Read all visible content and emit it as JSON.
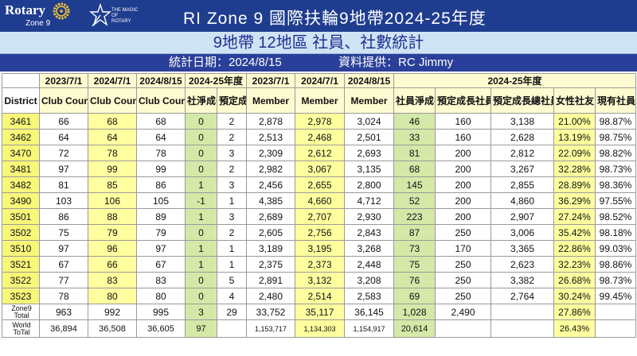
{
  "header": {
    "logo_rotary": "Rotary",
    "logo_zone": "Zone 9",
    "magic_text": "THE MAGIC OF ROTARY",
    "title": "RI Zone 9    國際扶輪9地帶2024-25年度"
  },
  "subtitle": "9地帶 12地區 社員、社數統計",
  "stat": {
    "date": "統計日期：2024/8/15",
    "source": "資料提供：RC Jimmy"
  },
  "colors": {
    "header_bg": "#1f3d8f",
    "subtitle_bg": "#cfe3f5",
    "highlight_yellow": "#ffff9f",
    "district_yellow": "#f9f77a",
    "growth_green": "#d4e9a8",
    "red_text": "#e3001a",
    "navy_text": "#1a237e"
  },
  "table": {
    "group_headers": {
      "c1": "2023/7/1",
      "c2": "2024/7/1",
      "c3": "2024/8/15",
      "c4": "2024-25年度",
      "m1": "2023/7/1",
      "m2": "2024/7/1",
      "m3": "2024/8/15",
      "m4": "2024-25年度"
    },
    "sub_headers": {
      "district": "District",
      "club1": "Club Count",
      "club2": "Club Count",
      "club3": "Club Count",
      "net_club": "社淨成長",
      "plan_club": "預定成長社數",
      "mem1": "Member",
      "mem2": "Member",
      "mem3": "Member",
      "net_mem": "社員淨成長",
      "plan_mem": "預定成長社員數",
      "plan_total": "預定成長總社員數",
      "female": "女性社友比率",
      "retention": "現有社員續留率"
    },
    "rows": [
      {
        "district": "3461",
        "c1": "66",
        "c2": "68",
        "c3": "68",
        "net": "0",
        "plan": "2",
        "m1": "2,878",
        "m2": "2,978",
        "m3": "3,024",
        "mnet": "46",
        "mplan": "160",
        "mtotal": "3,138",
        "female": "21.00%",
        "ret": "98.87%"
      },
      {
        "district": "3462",
        "c1": "64",
        "c2": "64",
        "c3": "64",
        "net": "0",
        "plan": "2",
        "m1": "2,513",
        "m2": "2,468",
        "m3": "2,501",
        "mnet": "33",
        "mplan": "160",
        "mtotal": "2,628",
        "female": "13.19%",
        "ret": "98.75%"
      },
      {
        "district": "3470",
        "c1": "72",
        "c2": "78",
        "c3": "78",
        "net": "0",
        "plan": "3",
        "m1": "2,309",
        "m2": "2,612",
        "m3": "2,693",
        "mnet": "81",
        "mplan": "200",
        "mtotal": "2,812",
        "female": "22.09%",
        "ret": "98.82%"
      },
      {
        "district": "3481",
        "c1": "97",
        "c2": "99",
        "c3": "99",
        "net": "0",
        "plan": "2",
        "m1": "2,982",
        "m2": "3,067",
        "m3": "3,135",
        "mnet": "68",
        "mplan": "200",
        "mtotal": "3,267",
        "female": "32.28%",
        "ret": "98.73%"
      },
      {
        "district": "3482",
        "c1": "81",
        "c2": "85",
        "c3": "86",
        "net": "1",
        "plan": "3",
        "m1": "2,456",
        "m2": "2,655",
        "m3": "2,800",
        "mnet": "145",
        "mplan": "200",
        "mtotal": "2,855",
        "female": "28.89%",
        "ret": "98.36%"
      },
      {
        "district": "3490",
        "c1": "103",
        "c2": "106",
        "c3": "105",
        "net": "-1",
        "plan": "1",
        "m1": "4,385",
        "m2": "4,660",
        "m3": "4,712",
        "mnet": "52",
        "mplan": "200",
        "mtotal": "4,860",
        "female": "36.29%",
        "ret": "97.55%"
      },
      {
        "district": "3501",
        "c1": "86",
        "c2": "88",
        "c3": "89",
        "net": "1",
        "plan": "3",
        "m1": "2,689",
        "m2": "2,707",
        "m3": "2,930",
        "mnet": "223",
        "mplan": "200",
        "mtotal": "2,907",
        "female": "27.24%",
        "ret": "98.52%"
      },
      {
        "district": "3502",
        "c1": "75",
        "c2": "79",
        "c3": "79",
        "net": "0",
        "plan": "2",
        "m1": "2,605",
        "m2": "2,756",
        "m3": "2,843",
        "mnet": "87",
        "mplan": "250",
        "mtotal": "3,006",
        "female": "35.42%",
        "ret": "98.18%"
      },
      {
        "district": "3510",
        "c1": "97",
        "c2": "96",
        "c3": "97",
        "net": "1",
        "plan": "1",
        "m1": "3,189",
        "m2": "3,195",
        "m3": "3,268",
        "mnet": "73",
        "mplan": "170",
        "mtotal": "3,365",
        "female": "22.86%",
        "ret": "99.03%"
      },
      {
        "district": "3521",
        "c1": "67",
        "c2": "66",
        "c3": "67",
        "net": "1",
        "plan": "1",
        "m1": "2,375",
        "m2": "2,373",
        "m3": "2,448",
        "mnet": "75",
        "mplan": "250",
        "mtotal": "2,623",
        "female": "32.23%",
        "ret": "98.86%"
      },
      {
        "district": "3522",
        "c1": "77",
        "c2": "83",
        "c3": "83",
        "net": "0",
        "plan": "5",
        "m1": "2,891",
        "m2": "3,132",
        "m3": "3,208",
        "mnet": "76",
        "mplan": "250",
        "mtotal": "3,382",
        "female": "26.68%",
        "ret": "98.73%"
      },
      {
        "district": "3523",
        "c1": "78",
        "c2": "80",
        "c3": "80",
        "net": "0",
        "plan": "4",
        "m1": "2,480",
        "m2": "2,514",
        "m3": "2,583",
        "mnet": "69",
        "mplan": "250",
        "mtotal": "2,764",
        "female": "30.24%",
        "ret": "99.45%"
      }
    ],
    "zone_total": {
      "label": "Zone9 Total",
      "c1": "963",
      "c2": "992",
      "c3": "995",
      "net": "3",
      "plan": "29",
      "m1": "33,752",
      "m2": "35,117",
      "m3": "36,145",
      "mnet": "1,028",
      "mplan": "2,490",
      "female": "27.86%"
    },
    "world_total": {
      "label": "World ToTal",
      "c1": "36,894",
      "c2": "36,508",
      "c3": "36,605",
      "net": "97",
      "m1": "1,153,717",
      "m2": "1,134,303",
      "m3": "1,154,917",
      "mnet": "20,614",
      "female": "26.43%"
    }
  }
}
